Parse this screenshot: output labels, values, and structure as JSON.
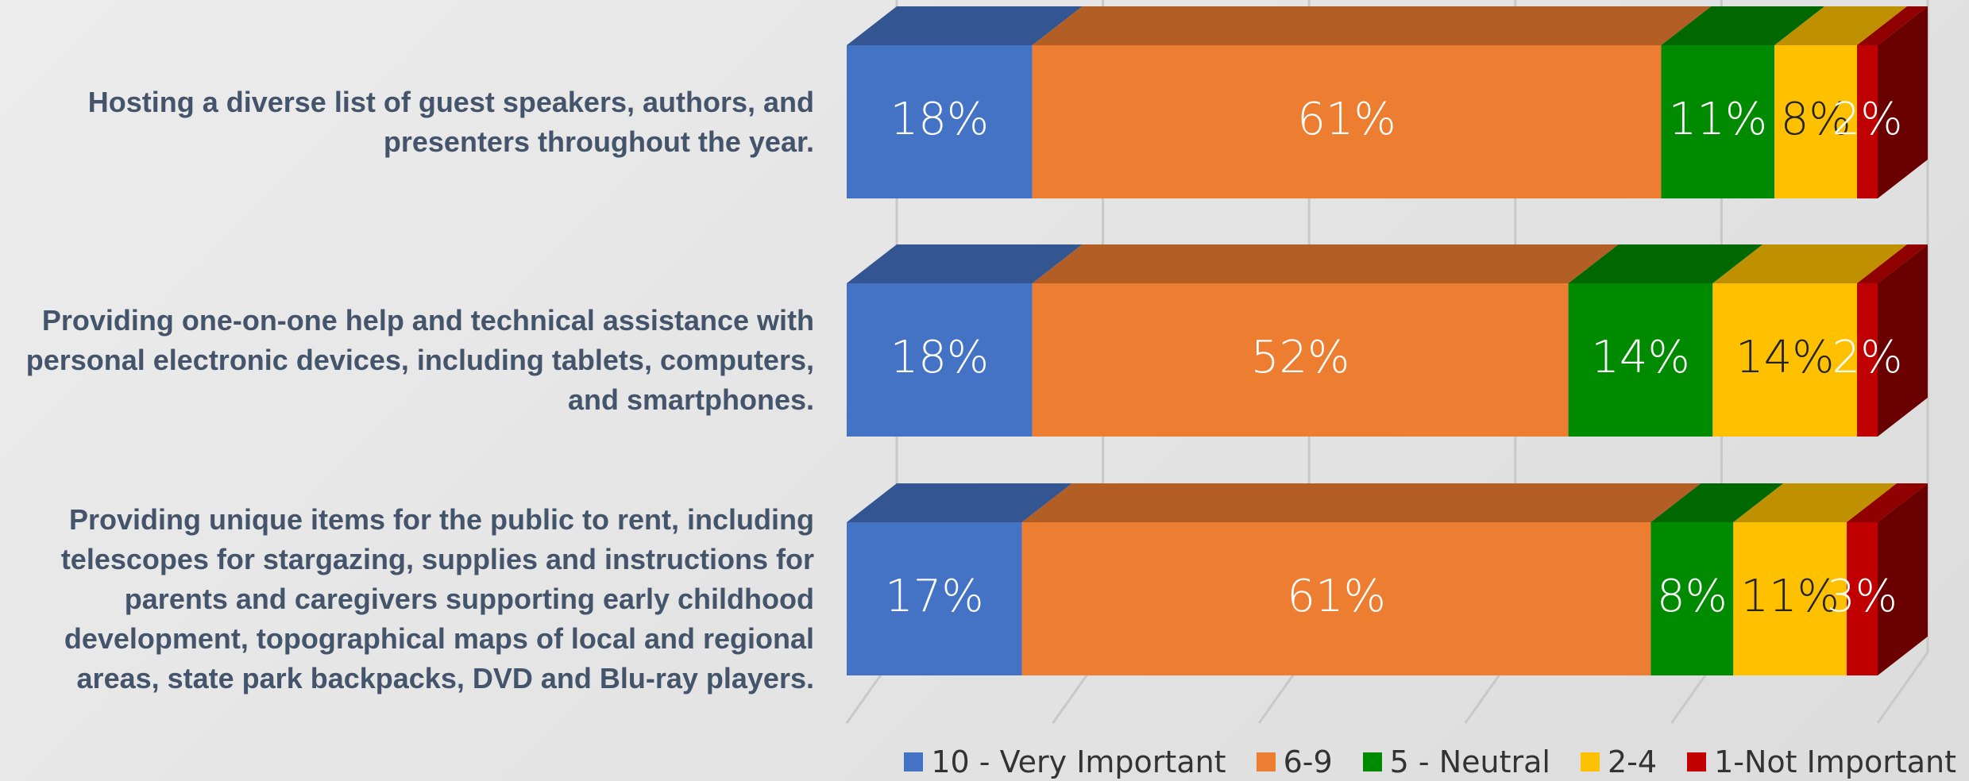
{
  "chart_data": {
    "type": "bar",
    "orientation": "horizontal",
    "stacked": true,
    "categories": [
      "Hosting a diverse list of guest speakers, authors, and presenters throughout the year.",
      "Providing one-on-one help and technical assistance with personal electronic devices, including tablets, computers, and smartphones.",
      "Providing unique items for the public to rent, including telescopes for stargazing, supplies and instructions for parents and caregivers supporting early childhood development, topographical maps of local and regional areas, state park backpacks, DVD and Blu-ray players."
    ],
    "series": [
      {
        "name": "10 - Very Important",
        "color": "#4472c4",
        "values": [
          18,
          18,
          17
        ],
        "value_labels": [
          "18%",
          "18%",
          "17%"
        ]
      },
      {
        "name": "6-9",
        "color": "#ed7d31",
        "values": [
          61,
          52,
          61
        ],
        "value_labels": [
          "61%",
          "52%",
          "61%"
        ]
      },
      {
        "name": "5 - Neutral",
        "color": "#008a00",
        "values": [
          11,
          14,
          8
        ],
        "value_labels": [
          "11%",
          "14%",
          "8%"
        ]
      },
      {
        "name": "2-4",
        "color": "#ffc000",
        "values": [
          8,
          14,
          11
        ],
        "value_labels": [
          "8%",
          "14%",
          "11%"
        ]
      },
      {
        "name": "1-Not Important",
        "color": "#c00000",
        "values": [
          2,
          2,
          3
        ],
        "value_labels": [
          "2%",
          "2%",
          "3%"
        ]
      }
    ],
    "xlim": [
      0,
      100
    ],
    "xticks": [
      0,
      20,
      40,
      60,
      80,
      100
    ],
    "grid": true,
    "legend": "bottom"
  }
}
